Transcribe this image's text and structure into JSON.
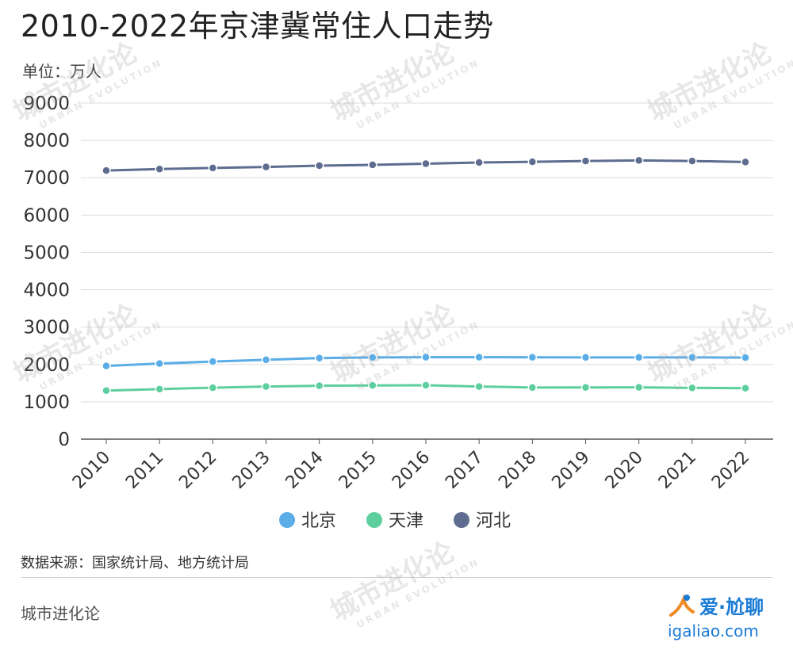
{
  "title": "2010-2022年京津冀常住人口走势",
  "unit_label": "单位：万人",
  "source": "数据来源：国家统计局、地方统计局",
  "brand": "城市进化论",
  "watermark": {
    "main": "城市进化论",
    "sub": "URBAN EVOLUTION"
  },
  "logo": {
    "text": "爱·尬聊",
    "url": "igaliao.com"
  },
  "chart_data": {
    "type": "line",
    "x": [
      "2010",
      "2011",
      "2012",
      "2013",
      "2014",
      "2015",
      "2016",
      "2017",
      "2018",
      "2019",
      "2020",
      "2021",
      "2022"
    ],
    "ylim": [
      0,
      9000
    ],
    "yticks": [
      "0",
      "1000",
      "2000",
      "3000",
      "4000",
      "5000",
      "6000",
      "7000",
      "8000",
      "9000"
    ],
    "grid": true,
    "legend_position": "bottom",
    "series": [
      {
        "name": "北京",
        "color": "#5aade6",
        "values": [
          1962,
          2024,
          2078,
          2125,
          2171,
          2188,
          2195,
          2194,
          2192,
          2190,
          2189,
          2189,
          2184
        ]
      },
      {
        "name": "天津",
        "color": "#5dcf9f",
        "values": [
          1299,
          1341,
          1378,
          1410,
          1429,
          1439,
          1443,
          1410,
          1383,
          1385,
          1387,
          1373,
          1363
        ]
      },
      {
        "name": "河北",
        "color": "#5d6c8f",
        "values": [
          7194,
          7232,
          7262,
          7288,
          7323,
          7345,
          7375,
          7409,
          7426,
          7447,
          7464,
          7448,
          7420
        ]
      }
    ]
  }
}
